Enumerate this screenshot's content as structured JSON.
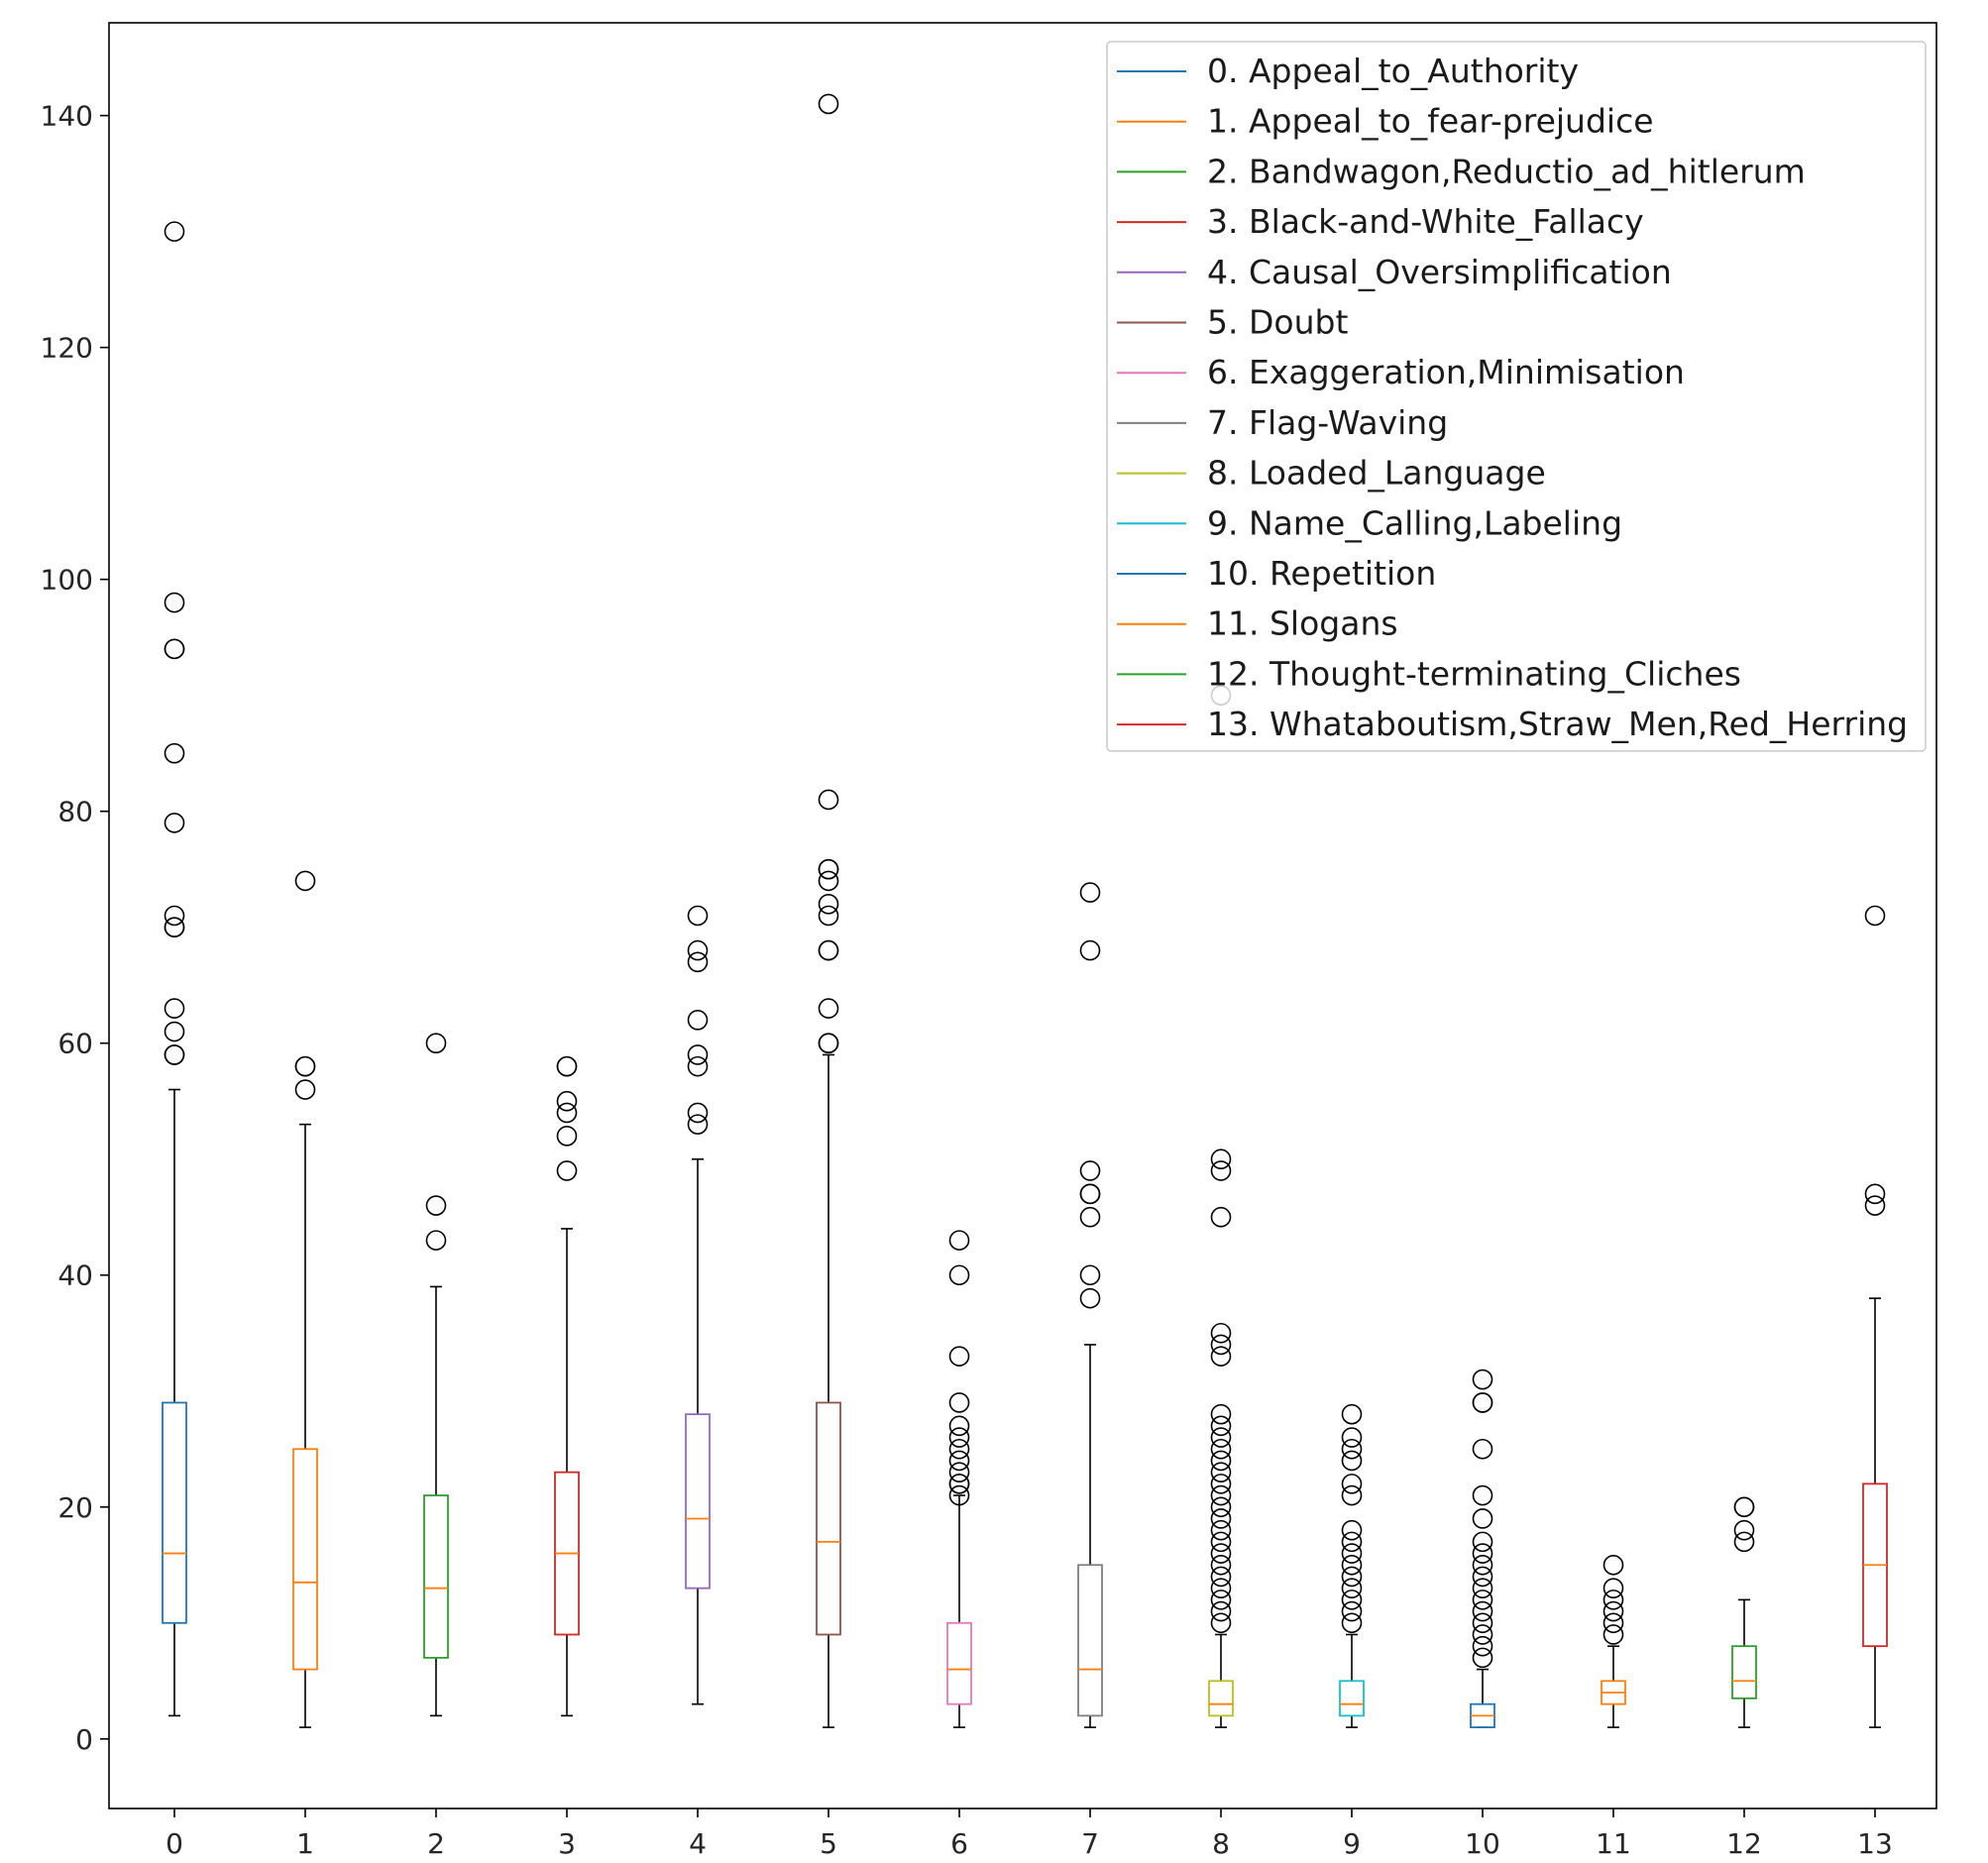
{
  "chart_data": {
    "type": "boxplot",
    "title": "",
    "xlabel": "",
    "ylabel": "",
    "ylim": [
      -6,
      148
    ],
    "yticks": [
      0,
      20,
      40,
      60,
      80,
      100,
      120,
      140
    ],
    "legend_position": "top-right",
    "categories": [
      "0",
      "1",
      "2",
      "3",
      "4",
      "5",
      "6",
      "7",
      "8",
      "9",
      "10",
      "11",
      "12",
      "13"
    ],
    "series": [
      {
        "name": "0. Appeal_to_Authority",
        "color": "#1f77b4",
        "whisker_low": 2,
        "q1": 10,
        "median": 16,
        "q3": 29,
        "whisker_high": 56,
        "outliers": [
          59,
          59,
          61,
          63,
          70,
          70,
          71,
          79,
          85,
          94,
          94,
          98,
          130
        ]
      },
      {
        "name": "1. Appeal_to_fear-prejudice",
        "color": "#ff7f0e",
        "whisker_low": 1,
        "q1": 6,
        "median": 13.5,
        "q3": 25,
        "whisker_high": 53,
        "outliers": [
          56,
          58,
          58,
          74
        ]
      },
      {
        "name": "2. Bandwagon,Reductio_ad_hitlerum",
        "color": "#2ca02c",
        "whisker_low": 2,
        "q1": 7,
        "median": 13,
        "q3": 21,
        "whisker_high": 39,
        "outliers": [
          43,
          46,
          60
        ]
      },
      {
        "name": "3. Black-and-White_Fallacy",
        "color": "#d62728",
        "whisker_low": 2,
        "q1": 9,
        "median": 16,
        "q3": 23,
        "whisker_high": 44,
        "outliers": [
          49,
          52,
          54,
          55,
          58,
          58
        ]
      },
      {
        "name": "4. Causal_Oversimplification",
        "color": "#9467bd",
        "whisker_low": 3,
        "q1": 13,
        "median": 19,
        "q3": 28,
        "whisker_high": 50,
        "outliers": [
          53,
          54,
          58,
          59,
          62,
          67,
          68,
          71
        ]
      },
      {
        "name": "5. Doubt",
        "color": "#8c564b",
        "whisker_low": 1,
        "q1": 9,
        "median": 17,
        "q3": 29,
        "whisker_high": 59,
        "outliers": [
          60,
          60,
          63,
          68,
          68,
          71,
          72,
          74,
          75,
          75,
          81,
          141
        ]
      },
      {
        "name": "6. Exaggeration,Minimisation",
        "color": "#e377c2",
        "whisker_low": 1,
        "q1": 3,
        "median": 6,
        "q3": 10,
        "whisker_high": 21,
        "outliers": [
          21,
          22,
          22,
          23,
          24,
          25,
          26,
          27,
          29,
          33,
          40,
          43
        ]
      },
      {
        "name": "7. Flag-Waving",
        "color": "#7f7f7f",
        "whisker_low": 1,
        "q1": 2,
        "median": 6,
        "q3": 15,
        "whisker_high": 34,
        "outliers": [
          38,
          40,
          45,
          47,
          47,
          49,
          68,
          73
        ]
      },
      {
        "name": "8. Loaded_Language",
        "color": "#bcbd22",
        "whisker_low": 1,
        "q1": 2,
        "median": 3,
        "q3": 5,
        "whisker_high": 9,
        "outliers": [
          10,
          11,
          12,
          13,
          14,
          15,
          16,
          17,
          18,
          19,
          20,
          21,
          22,
          23,
          24,
          25,
          26,
          27,
          28,
          33,
          34,
          35,
          45,
          49,
          50
        ]
      },
      {
        "name": "9. Name_Calling,Labeling",
        "color": "#17becf",
        "whisker_low": 1,
        "q1": 2,
        "median": 3,
        "q3": 5,
        "whisker_high": 9,
        "outliers": [
          10,
          11,
          12,
          13,
          14,
          15,
          16,
          17,
          18,
          21,
          22,
          24,
          25,
          26,
          28
        ]
      },
      {
        "name": "10. Repetition",
        "color": "#1f77b4",
        "whisker_low": 1,
        "q1": 1,
        "median": 2,
        "q3": 3,
        "whisker_high": 6,
        "outliers": [
          7,
          8,
          9,
          10,
          11,
          12,
          13,
          14,
          15,
          16,
          17,
          19,
          21,
          25,
          29,
          29,
          31
        ]
      },
      {
        "name": "11. Slogans",
        "color": "#ff7f0e",
        "whisker_low": 1,
        "q1": 3,
        "median": 4,
        "q3": 5,
        "whisker_high": 8,
        "outliers": [
          9,
          10,
          11,
          12,
          13,
          15
        ]
      },
      {
        "name": "12. Thought-terminating_Cliches",
        "color": "#2ca02c",
        "whisker_low": 1,
        "q1": 3.5,
        "median": 5,
        "q3": 8,
        "whisker_high": 12,
        "outliers": [
          17,
          18,
          20,
          20
        ]
      },
      {
        "name": "13. Whataboutism,Straw_Men,Red_Herring",
        "color": "#d62728",
        "whisker_low": 1,
        "q1": 8,
        "median": 15,
        "q3": 22,
        "whisker_high": 38,
        "outliers": [
          46,
          47,
          71
        ]
      }
    ],
    "extra_outliers": [
      {
        "category": "8",
        "value": 90
      }
    ]
  }
}
